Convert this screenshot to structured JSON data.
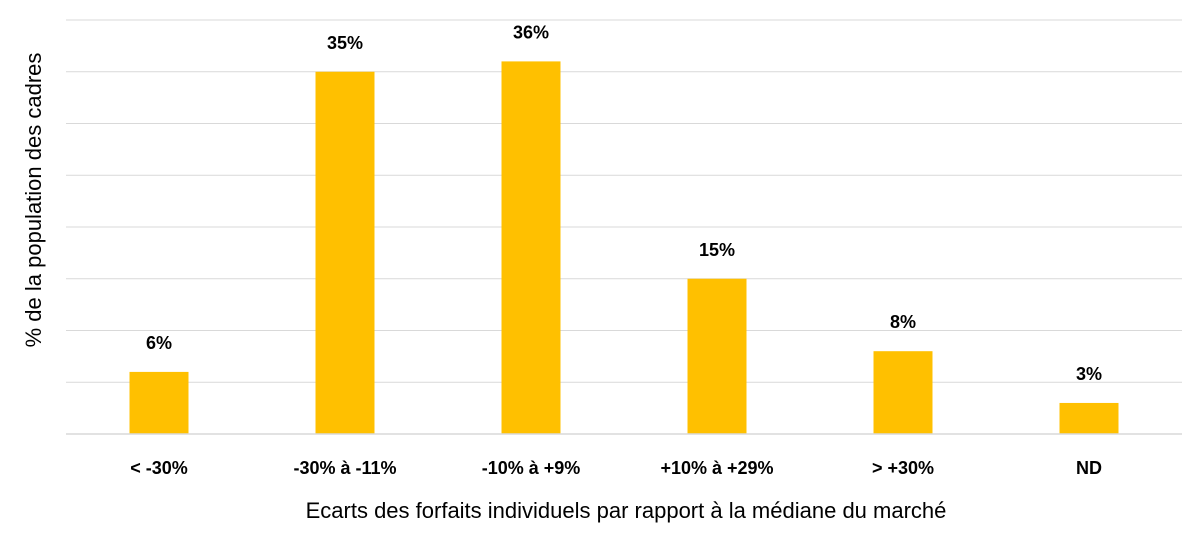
{
  "chart_data": {
    "type": "bar",
    "title": "",
    "xlabel": "Ecarts des forfaits individuels par rapport à la médiane du marché",
    "ylabel": "% de la population des cadres",
    "categories": [
      "< -30%",
      "-30% à -11%",
      "-10% à +9%",
      "+10% à +29%",
      "> +30%",
      "ND"
    ],
    "values": [
      6,
      35,
      36,
      15,
      8,
      3
    ],
    "data_labels": [
      "6%",
      "35%",
      "36%",
      "15%",
      "8%",
      "3%"
    ],
    "ylim": [
      0,
      40
    ],
    "gridlines": true,
    "y_tick_labels_shown": false,
    "legend": "none",
    "bar_color": "#FFC000"
  }
}
